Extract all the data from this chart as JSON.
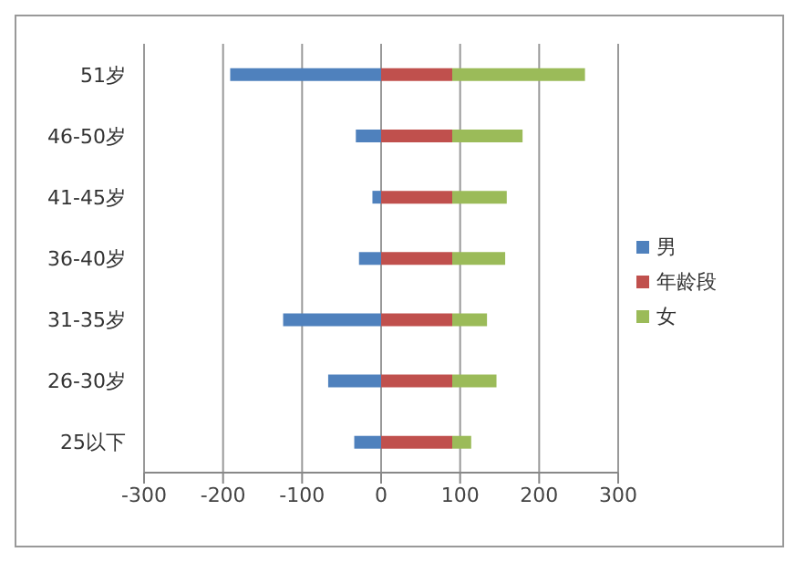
{
  "chart_data": {
    "type": "bar",
    "orientation": "horizontal",
    "stacked": true,
    "categories": [
      "51岁",
      "46-50岁",
      "41-45岁",
      "36-40岁",
      "31-35岁",
      "26-30岁",
      "25以下"
    ],
    "series": [
      {
        "name": "男",
        "color": "#4f81bd",
        "values": [
          -191,
          -32,
          -11,
          -28,
          -124,
          -67,
          -34
        ]
      },
      {
        "name": "年龄段",
        "color": "#c0504d",
        "values": [
          90,
          90,
          90,
          90,
          90,
          90,
          90
        ]
      },
      {
        "name": "女",
        "color": "#9bbb59",
        "values": [
          168,
          89,
          69,
          67,
          44,
          56,
          24
        ]
      }
    ],
    "xlim": [
      -300,
      300
    ],
    "xticks": [
      -300,
      -200,
      -100,
      0,
      100,
      200,
      300
    ],
    "grid": "x",
    "legend": "right"
  }
}
